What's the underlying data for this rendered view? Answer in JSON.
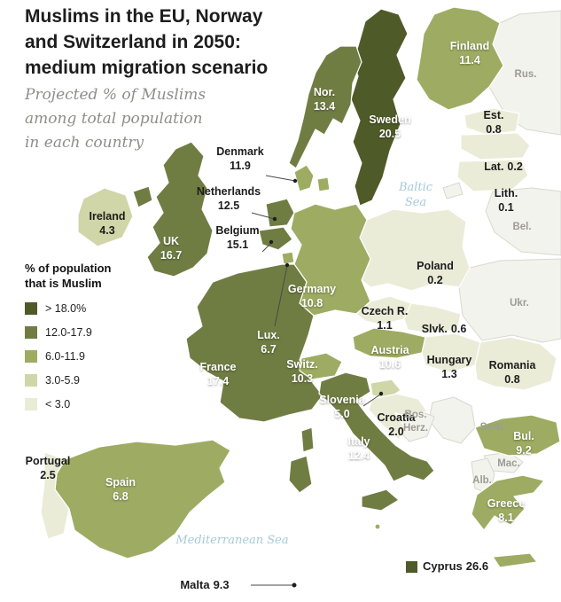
{
  "header": {
    "title_lines": [
      "Muslims in the EU, Norway",
      "and Switzerland in 2050:",
      "medium migration scenario"
    ],
    "subtitle_lines": [
      "Projected % of Muslims",
      "among total population",
      "in each country"
    ]
  },
  "legend": {
    "title_lines": [
      "% of population",
      "that is Muslim"
    ],
    "bands": [
      {
        "key": "band5",
        "label": "> 18.0%",
        "color": "#4e5a28"
      },
      {
        "key": "band4",
        "label": "12.0-17.9",
        "color": "#6f7d43"
      },
      {
        "key": "band3",
        "label": "6.0-11.9",
        "color": "#9dac62"
      },
      {
        "key": "band2",
        "label": "3.0-5.9",
        "color": "#d0d6a7"
      },
      {
        "key": "band1",
        "label": "< 3.0",
        "color": "#eaecd8"
      }
    ],
    "non_eu_color": "#f3f3ee"
  },
  "sea": {
    "baltic": "Baltic Sea",
    "mediterranean": "Mediterranean Sea",
    "label_color": "#a6c9da"
  },
  "chart_data": {
    "type": "choropleth",
    "region": "Europe",
    "unit": "Projected % of Muslims among total population in each country, 2050, medium migration scenario",
    "countries": [
      {
        "id": "finland",
        "name": "Finland",
        "value": "11.4",
        "band": "band3"
      },
      {
        "id": "russia",
        "name": "Rus.",
        "value": "",
        "band": "none"
      },
      {
        "id": "norway",
        "name": "Nor.",
        "value": "13.4",
        "band": "band4"
      },
      {
        "id": "sweden",
        "name": "Sweden",
        "value": "20.5",
        "band": "band5"
      },
      {
        "id": "estonia",
        "name": "Est.",
        "value": "0.8",
        "band": "band1"
      },
      {
        "id": "latvia",
        "name": "Lat.",
        "value": "0.2",
        "band": "band1"
      },
      {
        "id": "lithuania",
        "name": "Lith.",
        "value": "0.1",
        "band": "band1"
      },
      {
        "id": "denmark",
        "name": "Denmark",
        "value": "11.9",
        "band": "band3"
      },
      {
        "id": "netherlands",
        "name": "Netherlands",
        "value": "12.5",
        "band": "band4"
      },
      {
        "id": "belgium",
        "name": "Belgium",
        "value": "15.1",
        "band": "band4"
      },
      {
        "id": "belarus",
        "name": "Bel.",
        "value": "",
        "band": "none"
      },
      {
        "id": "ireland",
        "name": "Ireland",
        "value": "4.3",
        "band": "band2"
      },
      {
        "id": "uk",
        "name": "UK",
        "value": "16.7",
        "band": "band4"
      },
      {
        "id": "poland",
        "name": "Poland",
        "value": "0.2",
        "band": "band1"
      },
      {
        "id": "germany",
        "name": "Germany",
        "value": "10.8",
        "band": "band3"
      },
      {
        "id": "ukraine",
        "name": "Ukr.",
        "value": "",
        "band": "none"
      },
      {
        "id": "czech",
        "name": "Czech R.",
        "value": "1.1",
        "band": "band1"
      },
      {
        "id": "slovakia",
        "name": "Slvk.",
        "value": "0.6",
        "band": "band1"
      },
      {
        "id": "luxembourg",
        "name": "Lux.",
        "value": "6.7",
        "band": "band3"
      },
      {
        "id": "hungary",
        "name": "Hungary",
        "value": "1.3",
        "band": "band1"
      },
      {
        "id": "romania",
        "name": "Romania",
        "value": "0.8",
        "band": "band1"
      },
      {
        "id": "austria",
        "name": "Austria",
        "value": "10.6",
        "band": "band3"
      },
      {
        "id": "france",
        "name": "France",
        "value": "17.4",
        "band": "band4"
      },
      {
        "id": "switzerland",
        "name": "Switz.",
        "value": "10.3",
        "band": "band3"
      },
      {
        "id": "slovenia",
        "name": "Slovenia",
        "value": "5.0",
        "band": "band2"
      },
      {
        "id": "croatia",
        "name": "Croatia",
        "value": "2.0",
        "band": "band1"
      },
      {
        "id": "bosnia",
        "name": "Bos. Herz.",
        "value": "",
        "band": "none"
      },
      {
        "id": "serbia",
        "name": "Serb.",
        "value": "",
        "band": "none"
      },
      {
        "id": "italy",
        "name": "Italy",
        "value": "12.4",
        "band": "band4"
      },
      {
        "id": "bulgaria",
        "name": "Bul.",
        "value": "9.2",
        "band": "band3"
      },
      {
        "id": "portugal",
        "name": "Portugal",
        "value": "2.5",
        "band": "band1"
      },
      {
        "id": "spain",
        "name": "Spain",
        "value": "6.8",
        "band": "band3"
      },
      {
        "id": "macedonia",
        "name": "Mac.",
        "value": "",
        "band": "none"
      },
      {
        "id": "albania",
        "name": "Alb.",
        "value": "",
        "band": "none"
      },
      {
        "id": "greece",
        "name": "Greece",
        "value": "8.1",
        "band": "band3"
      },
      {
        "id": "malta",
        "name": "Malta",
        "value": "9.3",
        "band": "band3"
      },
      {
        "id": "cyprus",
        "name": "Cyprus",
        "value": "26.6",
        "band": "band5"
      }
    ]
  }
}
